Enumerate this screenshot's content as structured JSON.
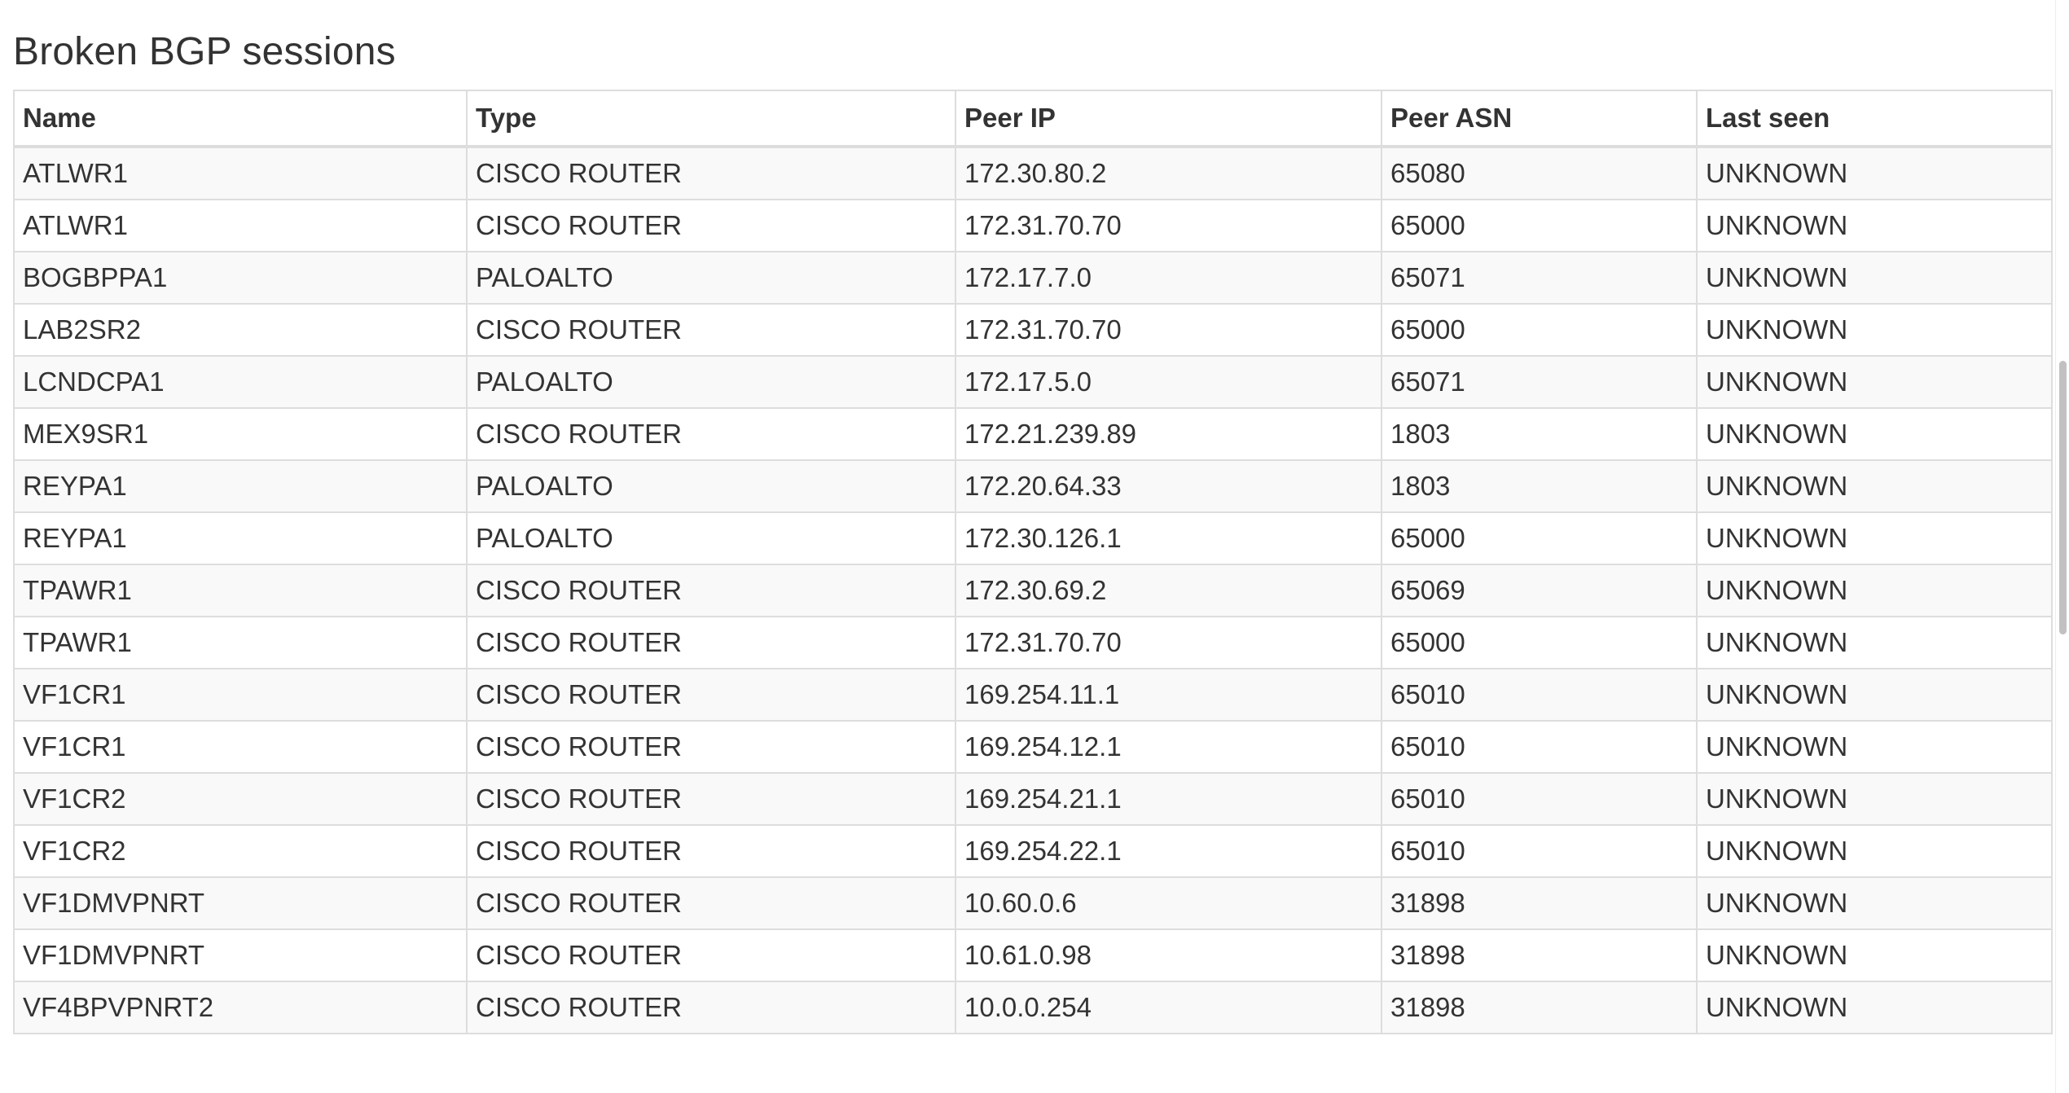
{
  "section": {
    "title": "Broken BGP sessions"
  },
  "table": {
    "columns": [
      "Name",
      "Type",
      "Peer IP",
      "Peer ASN",
      "Last seen"
    ],
    "rows": [
      [
        "ATLWR1",
        "CISCO ROUTER",
        "172.30.80.2",
        "65080",
        "UNKNOWN"
      ],
      [
        "ATLWR1",
        "CISCO ROUTER",
        "172.31.70.70",
        "65000",
        "UNKNOWN"
      ],
      [
        "BOGBPPA1",
        "PALOALTO",
        "172.17.7.0",
        "65071",
        "UNKNOWN"
      ],
      [
        "LAB2SR2",
        "CISCO ROUTER",
        "172.31.70.70",
        "65000",
        "UNKNOWN"
      ],
      [
        "LCNDCPA1",
        "PALOALTO",
        "172.17.5.0",
        "65071",
        "UNKNOWN"
      ],
      [
        "MEX9SR1",
        "CISCO ROUTER",
        "172.21.239.89",
        "1803",
        "UNKNOWN"
      ],
      [
        "REYPA1",
        "PALOALTO",
        "172.20.64.33",
        "1803",
        "UNKNOWN"
      ],
      [
        "REYPA1",
        "PALOALTO",
        "172.30.126.1",
        "65000",
        "UNKNOWN"
      ],
      [
        "TPAWR1",
        "CISCO ROUTER",
        "172.30.69.2",
        "65069",
        "UNKNOWN"
      ],
      [
        "TPAWR1",
        "CISCO ROUTER",
        "172.31.70.70",
        "65000",
        "UNKNOWN"
      ],
      [
        "VF1CR1",
        "CISCO ROUTER",
        "169.254.11.1",
        "65010",
        "UNKNOWN"
      ],
      [
        "VF1CR1",
        "CISCO ROUTER",
        "169.254.12.1",
        "65010",
        "UNKNOWN"
      ],
      [
        "VF1CR2",
        "CISCO ROUTER",
        "169.254.21.1",
        "65010",
        "UNKNOWN"
      ],
      [
        "VF1CR2",
        "CISCO ROUTER",
        "169.254.22.1",
        "65010",
        "UNKNOWN"
      ],
      [
        "VF1DMVPNRT",
        "CISCO ROUTER",
        "10.60.0.6",
        "31898",
        "UNKNOWN"
      ],
      [
        "VF1DMVPNRT",
        "CISCO ROUTER",
        "10.61.0.98",
        "31898",
        "UNKNOWN"
      ],
      [
        "VF4BPVPNRT2",
        "CISCO ROUTER",
        "10.0.0.254",
        "31898",
        "UNKNOWN"
      ]
    ]
  },
  "scrollbar": {
    "position_fraction": 0.33,
    "visible_fraction": 0.25
  },
  "colors": {
    "text": "#333333",
    "border": "#dddddd",
    "stripe": "#f9f9f9",
    "scroll_thumb": "#c1c1c1"
  }
}
